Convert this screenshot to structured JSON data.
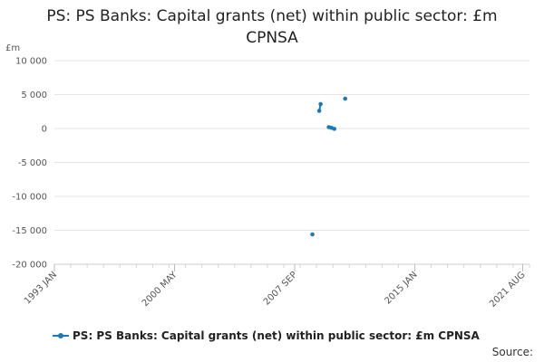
{
  "chart_data": {
    "type": "scatter",
    "title": "PS: PS Banks: Capital grants (net) within public sector: £m CPNSA",
    "unit_label": "£m",
    "ylim": [
      -20000,
      10000
    ],
    "y_ticks": [
      10000,
      5000,
      0,
      -5000,
      -10000,
      -15000,
      -20000
    ],
    "y_tick_labels": [
      "10 000",
      "5 000",
      "0",
      "-5 000",
      "-10 000",
      "-15 000",
      "-20 000"
    ],
    "xlim": [
      "1993-01",
      "2022-01"
    ],
    "x_ticks": [
      "1993-01",
      "2000-05",
      "2007-09",
      "2015-01",
      "2021-08"
    ],
    "x_tick_labels": [
      "1993 JAN",
      "2000 MAY",
      "2007 SEP",
      "2015 JAN",
      "2021 AUG"
    ],
    "grid": true,
    "legend_position": "bottom",
    "series": [
      {
        "name": "PS: PS Banks: Capital grants (net) within public sector: £m CPNSA",
        "color": "#1f77b4",
        "points": [
          {
            "x": "2008-10",
            "y": -15600
          },
          {
            "x": "2009-03",
            "y": 2600
          },
          {
            "x": "2009-04",
            "y": 3600
          },
          {
            "x": "2009-10",
            "y": 200
          },
          {
            "x": "2009-12",
            "y": 100
          },
          {
            "x": "2010-02",
            "y": -50
          },
          {
            "x": "2010-10",
            "y": 4400
          }
        ]
      }
    ]
  },
  "source_label": "Source:"
}
